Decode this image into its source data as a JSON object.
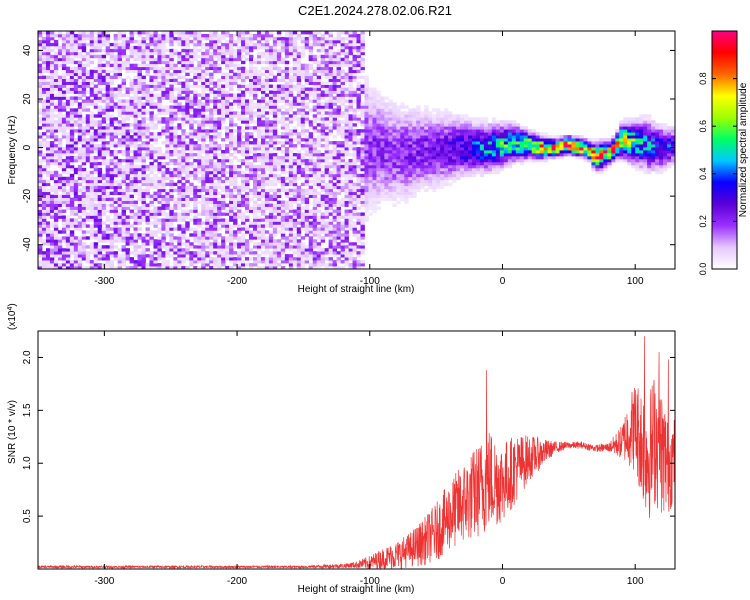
{
  "figure": {
    "title": "C2E1.2024.278.02.06.R21"
  },
  "chart_data": [
    {
      "type": "heatmap",
      "xlabel": "Height of straight line (km)",
      "ylabel": "Frequency (Hz)",
      "xlim": [
        -350,
        130
      ],
      "ylim": [
        -50,
        48
      ],
      "xticks": [
        -300,
        -200,
        -100,
        0,
        100
      ],
      "yticks": [
        -40,
        -20,
        0,
        20,
        40
      ],
      "grid": false,
      "colorbar": {
        "label": "Normalized spectral amplitude",
        "range": [
          0,
          1
        ],
        "ticks": [
          0.0,
          0.2,
          0.4,
          0.6,
          0.8
        ],
        "tick_labels": [
          "0.0",
          "0.2",
          "0.4",
          "0.6",
          "0.8"
        ],
        "colormap_stops": [
          "#ffffff",
          "#e6c8ff",
          "#9b30ff",
          "#5a00d8",
          "#0a00ff",
          "#00c8ff",
          "#00ff64",
          "#9eff00",
          "#ffff00",
          "#ff6600",
          "#ff0000",
          "#ff0080"
        ]
      },
      "band_envelope": {
        "x": [
          -350,
          -300,
          -250,
          -200,
          -150,
          -110,
          -100,
          -90,
          -80,
          -70,
          -60,
          -50,
          -40,
          -30,
          -20,
          -10,
          0,
          10,
          20,
          30,
          40,
          50,
          60,
          65,
          70,
          75,
          80,
          85,
          90,
          100,
          110,
          120,
          130
        ],
        "center_hz": [
          0,
          0,
          0,
          0,
          0,
          0,
          0,
          -1,
          -2,
          -2,
          -1,
          -1,
          0,
          0,
          0,
          0,
          1,
          2,
          1,
          0,
          0,
          1,
          0,
          -1,
          -4,
          -3,
          -2,
          0,
          3,
          2,
          1,
          0,
          1
        ],
        "halfwidth_hz": [
          50,
          50,
          50,
          50,
          50,
          50,
          30,
          26,
          24,
          22,
          20,
          18,
          16,
          14,
          12,
          11,
          10,
          8,
          6,
          5,
          4,
          4,
          4,
          4,
          6,
          6,
          5,
          5,
          8,
          10,
          12,
          10,
          8
        ],
        "peak_amplitude": [
          0.22,
          0.22,
          0.2,
          0.2,
          0.2,
          0.2,
          0.22,
          0.22,
          0.22,
          0.24,
          0.24,
          0.26,
          0.3,
          0.34,
          0.4,
          0.48,
          0.55,
          0.65,
          0.75,
          0.85,
          0.95,
          0.95,
          0.95,
          0.95,
          0.9,
          0.95,
          0.9,
          0.85,
          0.75,
          0.55,
          0.45,
          0.4,
          0.35
        ]
      }
    },
    {
      "type": "line",
      "xlabel": "Height of straight line (km)",
      "ylabel": "SNR (10 * v/v)",
      "y_multiplier_base": "(x10",
      "y_multiplier_exp": "4",
      "y_multiplier_close": ")",
      "xlim": [
        -350,
        130
      ],
      "ylim": [
        0,
        2.25
      ],
      "xticks": [
        -300,
        -200,
        -100,
        0,
        100
      ],
      "yticks": [
        0.5,
        1.0,
        1.5,
        2.0
      ],
      "ytick_labels": [
        "0.5",
        "1.0",
        "1.5",
        "2.0"
      ],
      "grid": false,
      "series": [
        {
          "color": "#ee3333",
          "x": [
            -350,
            -300,
            -250,
            -200,
            -150,
            -120,
            -110,
            -100,
            -90,
            -80,
            -70,
            -60,
            -50,
            -40,
            -30,
            -20,
            -10,
            0,
            10,
            20,
            30,
            40,
            50,
            60,
            70,
            80,
            90,
            95,
            100,
            105,
            110,
            115,
            120,
            125,
            130
          ],
          "mean": [
            0.02,
            0.02,
            0.02,
            0.02,
            0.02,
            0.03,
            0.04,
            0.06,
            0.1,
            0.13,
            0.18,
            0.25,
            0.35,
            0.5,
            0.62,
            0.72,
            0.85,
            0.82,
            0.95,
            1.05,
            1.1,
            1.15,
            1.17,
            1.17,
            1.14,
            1.15,
            1.2,
            1.3,
            1.35,
            1.2,
            1.05,
            1.25,
            1.1,
            1.0,
            1.05
          ],
          "spread": [
            0.01,
            0.01,
            0.01,
            0.01,
            0.01,
            0.02,
            0.03,
            0.06,
            0.09,
            0.12,
            0.15,
            0.2,
            0.25,
            0.3,
            0.35,
            0.4,
            0.45,
            0.35,
            0.3,
            0.2,
            0.12,
            0.05,
            0.03,
            0.03,
            0.03,
            0.04,
            0.15,
            0.3,
            0.4,
            0.5,
            0.55,
            0.6,
            0.55,
            0.45,
            0.35
          ],
          "peaks": [
            {
              "x": -12,
              "y": 1.88
            },
            {
              "x": 107,
              "y": 2.2
            },
            {
              "x": 118,
              "y": 2.05
            },
            {
              "x": 125,
              "y": 1.98
            }
          ]
        }
      ]
    }
  ]
}
